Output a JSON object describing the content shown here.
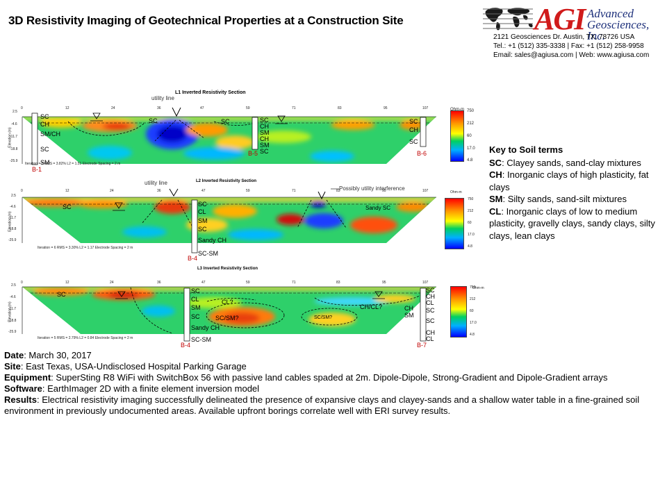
{
  "header": {
    "title": "3D Resistivity Imaging of Geotechnical Properties at a Construction Site",
    "logo": {
      "name": "AGI",
      "company_line1": "Advanced",
      "company_line2": "Geosciences, Inc."
    },
    "address": "2121 Geosciences Dr. Austin, TX, 78726 USA",
    "phone": "Tel.: +1 (512) 335-3338 | Fax: +1 (512) 258-9958",
    "contact": "Email:  sales@agiusa.com | Web: www.agiusa.com"
  },
  "colors": {
    "boring_label": "#c00000",
    "scale_high": "#ff0000",
    "scale_mid": "#00d060",
    "scale_low": "#0000ff"
  },
  "sections": [
    {
      "title": "L1 Inverted Resistivity Section",
      "x_ticks": [
        "0",
        "12",
        "24",
        "36",
        "47",
        "59",
        "71",
        "83",
        "95",
        "107"
      ],
      "y_label": "Elevation (m)",
      "y_ticks": [
        "2.5",
        "-4.6",
        "-11.7",
        "-18.8",
        "-25.9"
      ],
      "scale_unit": "Ohm-m",
      "scale_ticks": [
        "750",
        "212",
        "60",
        "17.0",
        "4.8"
      ],
      "footer": "Iteration = 5   RMS = 3.82%   L2 = 1.51    Electrode Spacing = 2 m",
      "annotations": [
        "utility line"
      ],
      "soil_labels": [
        "SC",
        "SC",
        "SC"
      ],
      "borings": [
        {
          "id": "B-1",
          "layers": [
            "SC",
            "CH",
            "SM/CH",
            "SC",
            "SM"
          ]
        },
        {
          "id": "B-5",
          "layers": [
            "SC",
            "CH",
            "SM",
            "CH",
            "SM",
            "SC"
          ]
        },
        {
          "id": "B-6",
          "layers": [
            "SC",
            "CH",
            "SC"
          ]
        }
      ]
    },
    {
      "title": "L2 Inverted Resistivity Section",
      "x_ticks": [
        "0",
        "12",
        "24",
        "36",
        "47",
        "59",
        "71",
        "83",
        "95",
        "107"
      ],
      "y_label": "Elevation (m)",
      "y_ticks": [
        "2.5",
        "-4.6",
        "-11.7",
        "-18.8",
        "-25.9"
      ],
      "scale_unit": "Ohm-m",
      "scale_ticks": [
        "750",
        "212",
        "60",
        "17.0",
        "4.8"
      ],
      "footer": "Iteration = 6   RMS = 3.30%   L2 = 1.17    Electrode Spacing = 2 m",
      "annotations": [
        "utility line",
        "Possibly utility interference"
      ],
      "soil_labels": [
        "SC",
        "Sandy  SC"
      ],
      "borings": [
        {
          "id": "B-4",
          "layers": [
            "SC",
            "CL",
            "SM",
            "SC",
            "Sandy CH",
            "SC-SM"
          ]
        }
      ]
    },
    {
      "title": "L3 Inverted Resistivity Section",
      "x_ticks": [
        "0",
        "12",
        "24",
        "36",
        "47",
        "59",
        "71",
        "83",
        "95",
        "107"
      ],
      "y_label": "Elevation (m)",
      "y_ticks": [
        "2.5",
        "-4.6",
        "-11.7",
        "-18.8",
        "-25.9"
      ],
      "scale_unit": "Ohm-m",
      "scale_ticks": [
        "750",
        "212",
        "60",
        "17.0",
        "4.8"
      ],
      "footer": "Iteration = 5   RMS = 2.79%   L2 = 0.84    Electrode Spacing = 2 m",
      "annotations": [
        "CL?",
        "SC/SM?",
        "SC/SM?",
        "CH/CL?"
      ],
      "soil_labels": [
        "SC",
        "CH",
        "SM"
      ],
      "borings": [
        {
          "id": "B-4",
          "layers": [
            "SC",
            "CL",
            "SM",
            "SC",
            "Sandy CH",
            "SC-SM"
          ]
        },
        {
          "id": "B-7",
          "layers": [
            "SC",
            "CH",
            "CL",
            "SC",
            "SC",
            "CH",
            "CL"
          ]
        }
      ]
    }
  ],
  "key": {
    "heading": "Key to Soil terms",
    "terms": [
      {
        "code": "SC",
        "desc": ": Clayey sands, sand-clay mixtures"
      },
      {
        "code": "CH",
        "desc": ": Inorganic clays of high plasticity, fat clays"
      },
      {
        "code": "SM",
        "desc": ": Silty sands, sand-silt mixtures"
      },
      {
        "code": "CL",
        "desc": ": Inorganic clays of low to medium plasticity, gravelly clays, sandy clays, silty  clays, lean clays"
      }
    ]
  },
  "details": {
    "date_label": "Date",
    "date": ": March 30, 2017",
    "site_label": "Site",
    "site": ": East Texas, USA-Undisclosed Hospital Parking Garage",
    "equipment_label": "Equipment",
    "equipment": ": SuperSting R8 WiFi with SwitchBox 56 with passive land cables spaded at 2m. Dipole-Dipole, Strong-Gradient and Dipole-Gradient arrays",
    "software_label": "Software",
    "software": ": EarthImager 2D with a finite element inversion model",
    "results_label": "Results",
    "results": ": Electrical resistivity imaging successfully delineated the presence of expansive clays and clayey-sands and a shallow water table in a fine-grained soil environment in previously undocumented areas. Available upfront borings correlate well with ERI survey results."
  }
}
